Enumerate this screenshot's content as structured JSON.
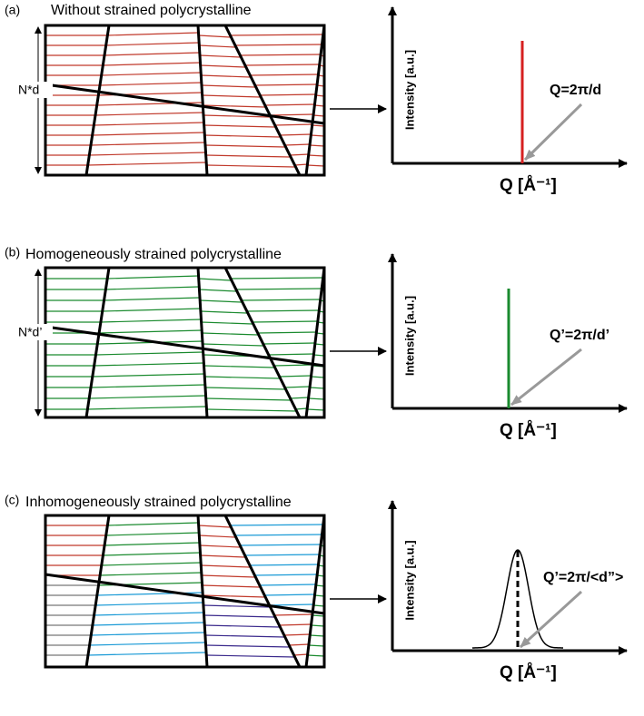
{
  "panels": [
    {
      "label": "(a)",
      "title": "Without strained polycrystalline",
      "period_label": "N*d",
      "y_axis_label": "Intensity [a.u.]",
      "x_axis_label": "Q [Å⁻¹]",
      "peak_label": "Q=2π/d"
    },
    {
      "label": "(b)",
      "title": "Homogeneously  strained polycrystalline",
      "period_label": "N*d’",
      "y_axis_label": "Intensity [a.u.]",
      "x_axis_label": "Q [Å⁻¹]",
      "peak_label": "Q’=2π/d’"
    },
    {
      "label": "(c)",
      "title": "Inhomogeneously  strained polycrystalline",
      "y_axis_label": "Intensity [a.u.]",
      "x_axis_label": "Q [Å⁻¹]",
      "peak_label": "Q’=2π/<d”>"
    }
  ]
}
